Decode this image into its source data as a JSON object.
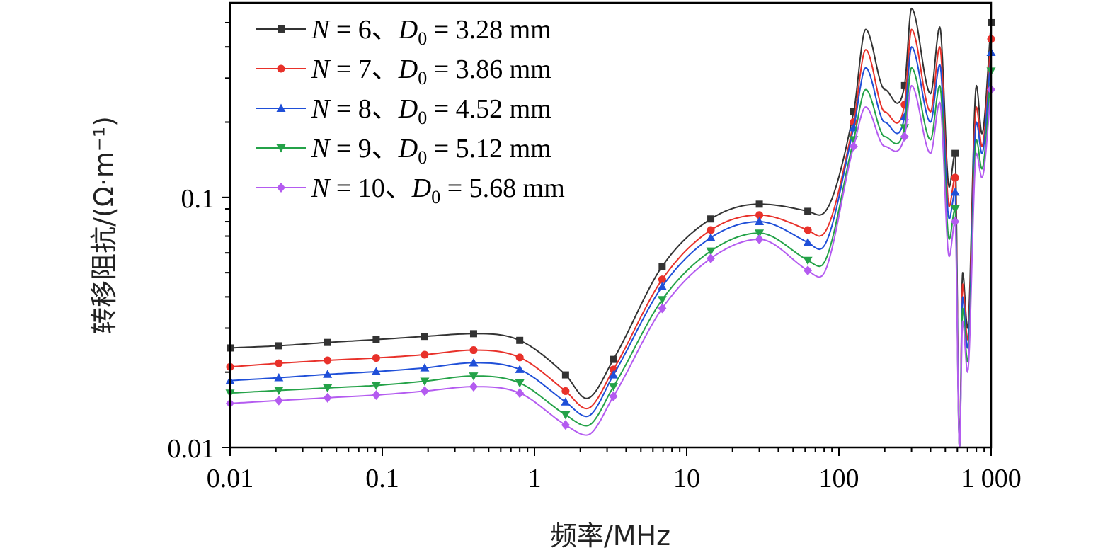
{
  "chart_data": {
    "type": "line",
    "xscale": "log",
    "yscale": "log",
    "xlabel": "频率/MHz",
    "ylabel": "转移阻抗/(Ω·m⁻¹)",
    "xlim": [
      0.01,
      1000
    ],
    "ylim": [
      0.01,
      0.6
    ],
    "xticks": [
      "0.01",
      "0.1",
      "1",
      "10",
      "100",
      "1 000"
    ],
    "yticks": [
      "0.01",
      "0.1"
    ],
    "legend_position": "top-left",
    "series": [
      {
        "name": "N = 6、D0 = 3.28 mm",
        "legend": {
          "n": "6",
          "d0": "3.28 mm"
        },
        "color": "#333333",
        "marker": "square",
        "marker_color": "#333333",
        "x": [
          0.01,
          0.0209,
          0.0437,
          0.0912,
          0.19,
          0.398,
          0.8,
          1.6,
          2.2,
          3.3,
          6.9,
          14.4,
          30,
          62.5,
          75,
          125,
          150,
          200,
          270,
          300,
          400,
          460,
          530,
          580,
          620,
          650,
          700,
          800,
          870,
          1000
        ],
        "y": [
          0.025,
          0.0255,
          0.0263,
          0.027,
          0.0278,
          0.0285,
          0.0268,
          0.0195,
          0.0157,
          0.0225,
          0.053,
          0.082,
          0.094,
          0.088,
          0.085,
          0.22,
          0.47,
          0.27,
          0.28,
          0.57,
          0.26,
          0.48,
          0.11,
          0.15,
          0.01,
          0.05,
          0.03,
          0.28,
          0.18,
          0.5
        ]
      },
      {
        "name": "N = 7、D0 = 3.86 mm",
        "legend": {
          "n": "7",
          "d0": "3.86 mm"
        },
        "color": "#e8312a",
        "marker": "circle",
        "marker_color": "#e8312a",
        "x": [
          0.01,
          0.0209,
          0.0437,
          0.0912,
          0.19,
          0.398,
          0.8,
          1.6,
          2.2,
          3.3,
          6.9,
          14.4,
          30,
          62.5,
          75,
          125,
          150,
          200,
          270,
          300,
          400,
          460,
          530,
          580,
          620,
          650,
          700,
          800,
          870,
          1000
        ],
        "y": [
          0.021,
          0.0217,
          0.0223,
          0.0228,
          0.0235,
          0.0245,
          0.0229,
          0.0168,
          0.0143,
          0.0205,
          0.047,
          0.074,
          0.085,
          0.074,
          0.07,
          0.2,
          0.39,
          0.22,
          0.235,
          0.47,
          0.22,
          0.4,
          0.092,
          0.12,
          0.01,
          0.045,
          0.027,
          0.23,
          0.16,
          0.43
        ]
      },
      {
        "name": "N = 8、D0 = 4.52 mm",
        "legend": {
          "n": "8",
          "d0": "4.52 mm"
        },
        "color": "#1f4fd8",
        "marker": "triangle",
        "marker_color": "#1f4fd8",
        "x": [
          0.01,
          0.0209,
          0.0437,
          0.0912,
          0.19,
          0.398,
          0.8,
          1.6,
          2.2,
          3.3,
          6.9,
          14.4,
          30,
          62.5,
          75,
          125,
          150,
          200,
          270,
          300,
          400,
          460,
          530,
          580,
          620,
          650,
          700,
          800,
          870,
          1000
        ],
        "y": [
          0.0185,
          0.019,
          0.0196,
          0.0201,
          0.0208,
          0.0218,
          0.0205,
          0.0152,
          0.0133,
          0.0195,
          0.044,
          0.069,
          0.08,
          0.066,
          0.062,
          0.19,
          0.33,
          0.2,
          0.21,
          0.4,
          0.2,
          0.34,
          0.082,
          0.105,
          0.01,
          0.04,
          0.025,
          0.2,
          0.15,
          0.38
        ]
      },
      {
        "name": "N = 9、D0 = 5.12 mm",
        "legend": {
          "n": "9",
          "d0": "5.12 mm"
        },
        "color": "#24a248",
        "marker": "triangle-down",
        "marker_color": "#24a248",
        "x": [
          0.01,
          0.0209,
          0.0437,
          0.0912,
          0.19,
          0.398,
          0.8,
          1.6,
          2.2,
          3.3,
          6.9,
          14.4,
          30,
          62.5,
          75,
          125,
          150,
          200,
          270,
          300,
          400,
          460,
          530,
          580,
          620,
          650,
          700,
          800,
          870,
          1000
        ],
        "y": [
          0.0165,
          0.0169,
          0.0173,
          0.0177,
          0.0184,
          0.0193,
          0.0181,
          0.0135,
          0.0122,
          0.0175,
          0.039,
          0.061,
          0.072,
          0.056,
          0.053,
          0.17,
          0.27,
          0.175,
          0.19,
          0.33,
          0.17,
          0.28,
          0.068,
          0.09,
          0.01,
          0.036,
          0.022,
          0.17,
          0.13,
          0.32
        ]
      },
      {
        "name": "N = 10、D0 = 5.68 mm",
        "legend": {
          "n": "10",
          "d0": "5.68 mm"
        },
        "color": "#b45bf0",
        "marker": "diamond",
        "marker_color": "#b45bf0",
        "x": [
          0.01,
          0.0209,
          0.0437,
          0.0912,
          0.19,
          0.398,
          0.8,
          1.6,
          2.2,
          3.3,
          6.9,
          14.4,
          30,
          62.5,
          75,
          125,
          150,
          200,
          270,
          300,
          400,
          460,
          530,
          580,
          620,
          650,
          700,
          800,
          870,
          1000
        ],
        "y": [
          0.015,
          0.0154,
          0.0158,
          0.0162,
          0.0168,
          0.0175,
          0.0165,
          0.0123,
          0.0112,
          0.016,
          0.036,
          0.057,
          0.068,
          0.051,
          0.048,
          0.16,
          0.23,
          0.16,
          0.175,
          0.28,
          0.15,
          0.24,
          0.058,
          0.08,
          0.01,
          0.032,
          0.02,
          0.15,
          0.12,
          0.27
        ]
      }
    ]
  }
}
